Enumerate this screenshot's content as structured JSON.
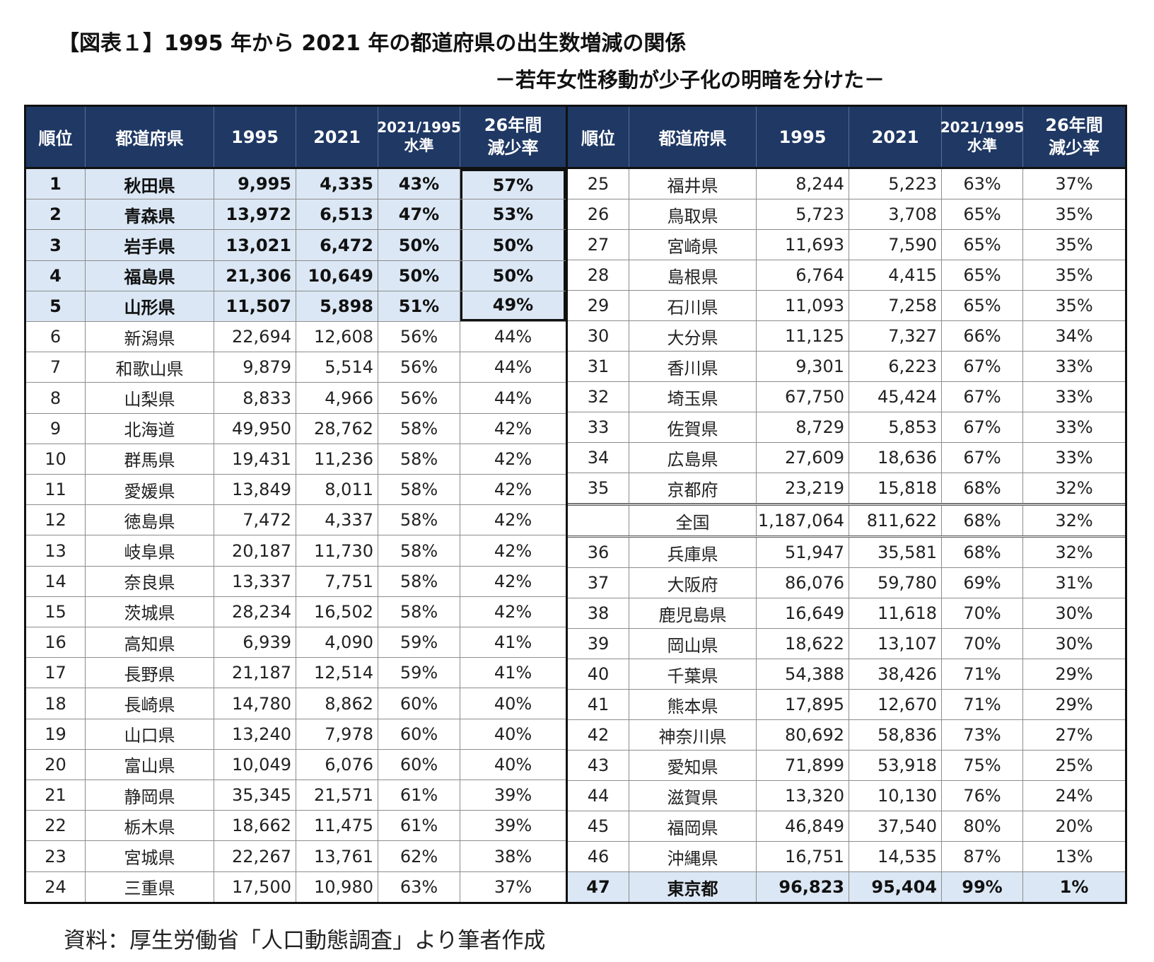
{
  "title": "【図表１】1995 年から 2021 年の都道府県の出生数増減の関係",
  "subtitle": "－若年女性移動が少子化の明暗を分けた－",
  "source": "資料：厚生労働省「人口動態調査」より筆者作成",
  "headers": {
    "rank": "順位",
    "pref": "都道府県",
    "y1995": "1995",
    "y2021": "2021",
    "level_a": "2021/1995",
    "level_b": "水準",
    "rate_a": "26年間",
    "rate_b": "減少率"
  },
  "left_rows": [
    [
      "1",
      "秋田県",
      "9,995",
      "4,335",
      "43%",
      "57%"
    ],
    [
      "2",
      "青森県",
      "13,972",
      "6,513",
      "47%",
      "53%"
    ],
    [
      "3",
      "岩手県",
      "13,021",
      "6,472",
      "50%",
      "50%"
    ],
    [
      "4",
      "福島県",
      "21,306",
      "10,649",
      "50%",
      "50%"
    ],
    [
      "5",
      "山形県",
      "11,507",
      "5,898",
      "51%",
      "49%"
    ],
    [
      "6",
      "新潟県",
      "22,694",
      "12,608",
      "56%",
      "44%"
    ],
    [
      "7",
      "和歌山県",
      "9,879",
      "5,514",
      "56%",
      "44%"
    ],
    [
      "8",
      "山梨県",
      "8,833",
      "4,966",
      "56%",
      "44%"
    ],
    [
      "9",
      "北海道",
      "49,950",
      "28,762",
      "58%",
      "42%"
    ],
    [
      "10",
      "群馬県",
      "19,431",
      "11,236",
      "58%",
      "42%"
    ],
    [
      "11",
      "愛媛県",
      "13,849",
      "8,011",
      "58%",
      "42%"
    ],
    [
      "12",
      "徳島県",
      "7,472",
      "4,337",
      "58%",
      "42%"
    ],
    [
      "13",
      "岐阜県",
      "20,187",
      "11,730",
      "58%",
      "42%"
    ],
    [
      "14",
      "奈良県",
      "13,337",
      "7,751",
      "58%",
      "42%"
    ],
    [
      "15",
      "茨城県",
      "28,234",
      "16,502",
      "58%",
      "42%"
    ],
    [
      "16",
      "高知県",
      "6,939",
      "4,090",
      "59%",
      "41%"
    ],
    [
      "17",
      "長野県",
      "21,187",
      "12,514",
      "59%",
      "41%"
    ],
    [
      "18",
      "長崎県",
      "14,780",
      "8,862",
      "60%",
      "40%"
    ],
    [
      "19",
      "山口県",
      "13,240",
      "7,978",
      "60%",
      "40%"
    ],
    [
      "20",
      "富山県",
      "10,049",
      "6,076",
      "60%",
      "40%"
    ],
    [
      "21",
      "静岡県",
      "35,345",
      "21,571",
      "61%",
      "39%"
    ],
    [
      "22",
      "栃木県",
      "18,662",
      "11,475",
      "61%",
      "39%"
    ],
    [
      "23",
      "宮城県",
      "22,267",
      "13,761",
      "62%",
      "38%"
    ],
    [
      "24",
      "三重県",
      "17,500",
      "10,980",
      "63%",
      "37%"
    ]
  ],
  "right_rows": [
    [
      "25",
      "福井県",
      "8,244",
      "5,223",
      "63%",
      "37%"
    ],
    [
      "26",
      "鳥取県",
      "5,723",
      "3,708",
      "65%",
      "35%"
    ],
    [
      "27",
      "宮崎県",
      "11,693",
      "7,590",
      "65%",
      "35%"
    ],
    [
      "28",
      "島根県",
      "6,764",
      "4,415",
      "65%",
      "35%"
    ],
    [
      "29",
      "石川県",
      "11,093",
      "7,258",
      "65%",
      "35%"
    ],
    [
      "30",
      "大分県",
      "11,125",
      "7,327",
      "66%",
      "34%"
    ],
    [
      "31",
      "香川県",
      "9,301",
      "6,223",
      "67%",
      "33%"
    ],
    [
      "32",
      "埼玉県",
      "67,750",
      "45,424",
      "67%",
      "33%"
    ],
    [
      "33",
      "佐賀県",
      "8,729",
      "5,853",
      "67%",
      "33%"
    ],
    [
      "34",
      "広島県",
      "27,609",
      "18,636",
      "67%",
      "33%"
    ],
    [
      "35",
      "京都府",
      "23,219",
      "15,818",
      "68%",
      "32%"
    ],
    [
      "",
      "全国",
      "1,187,064",
      "811,622",
      "68%",
      "32%"
    ],
    [
      "36",
      "兵庫県",
      "51,947",
      "35,581",
      "68%",
      "32%"
    ],
    [
      "37",
      "大阪府",
      "86,076",
      "59,780",
      "69%",
      "31%"
    ],
    [
      "38",
      "鹿児島県",
      "16,649",
      "11,618",
      "70%",
      "30%"
    ],
    [
      "39",
      "岡山県",
      "18,622",
      "13,107",
      "70%",
      "30%"
    ],
    [
      "40",
      "千葉県",
      "54,388",
      "38,426",
      "71%",
      "29%"
    ],
    [
      "41",
      "熊本県",
      "17,895",
      "12,670",
      "71%",
      "29%"
    ],
    [
      "42",
      "神奈川県",
      "80,692",
      "58,836",
      "73%",
      "27%"
    ],
    [
      "43",
      "愛知県",
      "71,899",
      "53,918",
      "75%",
      "25%"
    ],
    [
      "44",
      "滋賀県",
      "13,320",
      "10,130",
      "76%",
      "24%"
    ],
    [
      "45",
      "福岡県",
      "46,849",
      "37,540",
      "80%",
      "20%"
    ],
    [
      "46",
      "沖縄県",
      "16,751",
      "14,535",
      "87%",
      "13%"
    ],
    [
      "47",
      "東京都",
      "96,823",
      "95,404",
      "99%",
      "1%"
    ]
  ]
}
